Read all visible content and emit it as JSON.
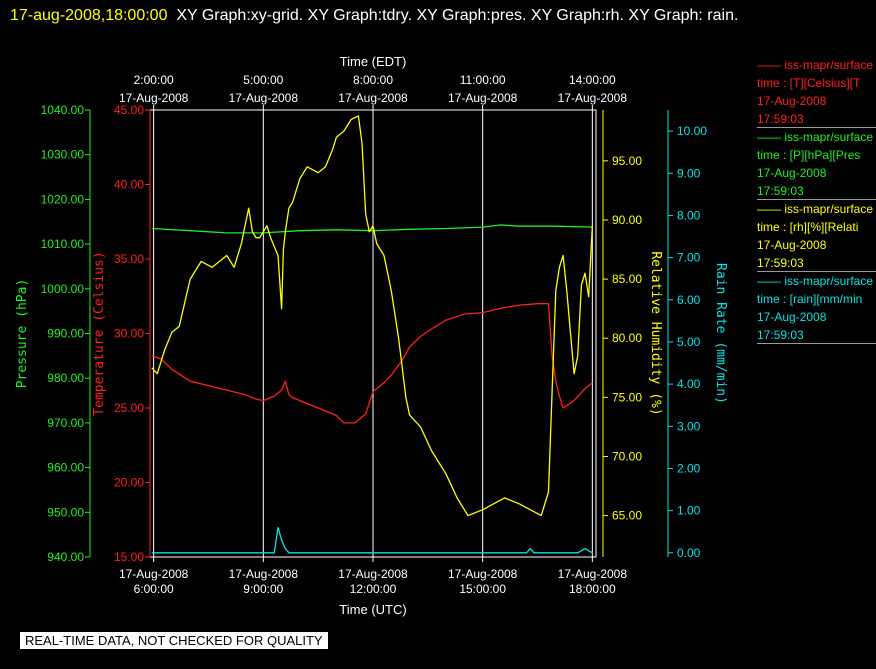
{
  "header": {
    "timestamp": "17-aug-2008,18:00:00",
    "graphs": "XY Graph:xy-grid.  XY Graph:tdry.  XY Graph:pres.  XY Graph:rh.  XY Graph: rain."
  },
  "colors": {
    "temperature": "#ff2020",
    "pressure": "#22ee22",
    "humidity": "#ffff00",
    "rain": "#00e5e5",
    "grid": "#ffffff",
    "text": "#ffffff"
  },
  "legend": [
    {
      "source": "iss-mapr/surface",
      "field": "time : [T][Celsius][T",
      "date": "17-Aug-2008",
      "time": "17:59:03",
      "color": "#ff2020"
    },
    {
      "source": "iss-mapr/surface",
      "field": "time : [P][hPa][Pres",
      "date": "17-Aug-2008",
      "time": "17:59:03",
      "color": "#22ee22"
    },
    {
      "source": "iss-mapr/surface",
      "field": "time : [rh][%][Relati",
      "date": "17-Aug-2008",
      "time": "17:59:03",
      "color": "#ffff00"
    },
    {
      "source": "iss-mapr/surface",
      "field": "time : [rain][mm/min",
      "date": "17-Aug-2008",
      "time": "17:59:03",
      "color": "#00e5e5"
    }
  ],
  "banner": "REAL-TIME DATA, NOT CHECKED FOR QUALITY",
  "chart_data": {
    "type": "line",
    "grid": true,
    "x_bottom": {
      "label": "Time (UTC)",
      "range_hours": [
        5.9,
        18.1
      ],
      "ticks": [
        {
          "hour": 6,
          "date": "17-Aug-2008",
          "time": "6:00:00"
        },
        {
          "hour": 9,
          "date": "17-Aug-2008",
          "time": "9:00:00"
        },
        {
          "hour": 12,
          "date": "17-Aug-2008",
          "time": "12:00:00"
        },
        {
          "hour": 15,
          "date": "17-Aug-2008",
          "time": "15:00:00"
        },
        {
          "hour": 18,
          "date": "17-Aug-2008",
          "time": "18:00:00"
        }
      ]
    },
    "x_top": {
      "label": "Time (EDT)",
      "ticks": [
        {
          "hour": 6,
          "time": "2:00:00",
          "date": "17-Aug-2008"
        },
        {
          "hour": 9,
          "time": "5:00:00",
          "date": "17-Aug-2008"
        },
        {
          "hour": 12,
          "time": "8:00:00",
          "date": "17-Aug-2008"
        },
        {
          "hour": 15,
          "time": "11:00:00",
          "date": "17-Aug-2008"
        },
        {
          "hour": 18,
          "time": "14:00:00",
          "date": "17-Aug-2008"
        }
      ]
    },
    "axes": {
      "pressure": {
        "label": "Pressure (hPa)",
        "range": [
          940,
          1040
        ],
        "ticks": [
          "940.00",
          "950.00",
          "960.00",
          "970.00",
          "980.00",
          "990.00",
          "1000.00",
          "1010.00",
          "1020.00",
          "1030.00",
          "1040.00"
        ]
      },
      "temperature": {
        "label": "Temperature (Celsius)",
        "range": [
          15,
          45
        ],
        "ticks": [
          "15.00",
          "20.00",
          "25.00",
          "30.00",
          "35.00",
          "40.00",
          "45.00"
        ]
      },
      "humidity": {
        "label": "Relative Humidity (%)",
        "range": [
          61.5,
          99.3
        ],
        "ticks": [
          "65.00",
          "70.00",
          "75.00",
          "80.00",
          "85.00",
          "90.00",
          "95.00"
        ]
      },
      "rain": {
        "label": "Rain Rate (mm/min)",
        "range": [
          -0.1,
          10.5
        ],
        "ticks": [
          "0.00",
          "1.00",
          "2.00",
          "3.00",
          "4.00",
          "5.00",
          "6.00",
          "7.00",
          "8.00",
          "9.00",
          "10.00"
        ]
      }
    },
    "series": [
      {
        "name": "Temperature",
        "axis": "temperature",
        "x": [
          5.95,
          6.2,
          6.5,
          7.0,
          7.5,
          8.0,
          8.5,
          8.8,
          9.0,
          9.3,
          9.5,
          9.6,
          9.7,
          9.8,
          10.0,
          10.5,
          11.0,
          11.2,
          11.5,
          11.8,
          12.0,
          12.3,
          12.5,
          12.8,
          13.0,
          13.3,
          13.6,
          14.0,
          14.5,
          15.0,
          15.5,
          16.0,
          16.5,
          16.8,
          16.9,
          17.0,
          17.1,
          17.2,
          17.5,
          17.8,
          18.0
        ],
        "y": [
          28.5,
          28.3,
          27.6,
          26.8,
          26.5,
          26.2,
          25.9,
          25.6,
          25.5,
          25.8,
          26.2,
          26.8,
          25.9,
          25.7,
          25.5,
          25.0,
          24.5,
          24.0,
          24.0,
          24.6,
          26.1,
          26.7,
          27.2,
          28.2,
          29.1,
          29.8,
          30.3,
          30.9,
          31.3,
          31.4,
          31.7,
          31.9,
          32.0,
          32.0,
          28.5,
          26.8,
          25.8,
          25.0,
          25.5,
          26.3,
          26.7
        ]
      },
      {
        "name": "Pressure",
        "axis": "pressure",
        "x": [
          5.95,
          7.0,
          8.0,
          9.0,
          10.0,
          11.0,
          12.0,
          13.0,
          14.0,
          15.0,
          15.5,
          16.0,
          17.0,
          18.0
        ],
        "y": [
          1013.5,
          1013.0,
          1012.5,
          1012.5,
          1013.0,
          1013.2,
          1013.0,
          1013.3,
          1013.5,
          1013.8,
          1014.3,
          1014.0,
          1014.0,
          1013.8
        ]
      },
      {
        "name": "Relative Humidity",
        "axis": "humidity",
        "x": [
          5.95,
          6.1,
          6.3,
          6.5,
          6.7,
          7.0,
          7.3,
          7.6,
          8.0,
          8.2,
          8.4,
          8.5,
          8.6,
          8.7,
          8.8,
          8.9,
          9.0,
          9.1,
          9.2,
          9.4,
          9.5,
          9.55,
          9.6,
          9.7,
          9.8,
          10.0,
          10.2,
          10.5,
          10.7,
          10.9,
          11.0,
          11.2,
          11.4,
          11.6,
          11.7,
          11.8,
          11.9,
          12.0,
          12.1,
          12.3,
          12.5,
          12.7,
          12.9,
          13.0,
          13.3,
          13.6,
          14.0,
          14.3,
          14.6,
          15.0,
          15.3,
          15.6,
          16.0,
          16.3,
          16.6,
          16.8,
          16.9,
          17.0,
          17.1,
          17.2,
          17.3,
          17.4,
          17.5,
          17.6,
          17.7,
          17.8,
          17.9,
          18.0
        ],
        "y": [
          77.5,
          77.0,
          79.0,
          80.5,
          81.0,
          85.0,
          86.5,
          86.0,
          87.0,
          86.0,
          88.0,
          89.5,
          91.0,
          89.0,
          88.5,
          88.5,
          89.0,
          89.5,
          88.5,
          87.0,
          82.5,
          87.5,
          89.0,
          91.0,
          91.5,
          93.5,
          94.5,
          94.0,
          94.5,
          96.0,
          97.0,
          97.5,
          98.5,
          98.8,
          96.5,
          90.5,
          89.0,
          89.5,
          88.0,
          87.0,
          84.0,
          80.0,
          75.0,
          73.5,
          72.5,
          70.5,
          68.5,
          66.5,
          65.0,
          65.5,
          66.0,
          66.5,
          66.0,
          65.5,
          65.0,
          67.0,
          75.5,
          84.0,
          86.0,
          87.0,
          84.0,
          80.5,
          77.0,
          78.5,
          84.5,
          85.5,
          83.5,
          89.5
        ]
      },
      {
        "name": "Rain Rate",
        "axis": "rain",
        "x": [
          5.95,
          9.3,
          9.4,
          9.5,
          9.6,
          9.7,
          10.0,
          16.2,
          16.3,
          16.4,
          17.6,
          17.7,
          17.8,
          17.9,
          18.0
        ],
        "y": [
          0.0,
          0.0,
          0.6,
          0.3,
          0.1,
          0.0,
          0.0,
          0.0,
          0.1,
          0.0,
          0.0,
          0.05,
          0.1,
          0.05,
          0.0
        ]
      }
    ]
  }
}
